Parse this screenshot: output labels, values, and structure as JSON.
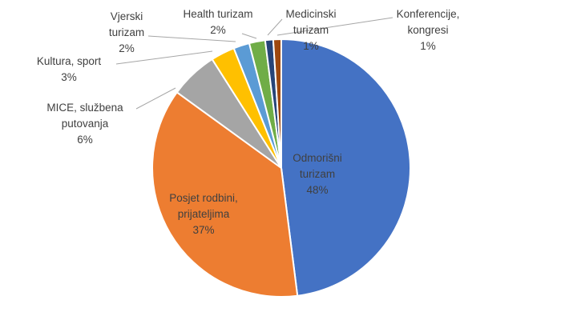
{
  "chart_data": {
    "type": "pie",
    "title": "",
    "colors": {
      "Odmorišni turizam": "#4472c4",
      "Posjet rodbini, prijateljima": "#ed7d31",
      "MICE, službena putovanja": "#a5a5a5",
      "Kultura, sport": "#ffc000",
      "Vjerski turizam": "#5b9bd5",
      "Health turizam": "#70ad47",
      "Medicinski turizam": "#264478",
      "Konferencije, kongresi": "#9e480e"
    },
    "slices": [
      {
        "label": "Odmorišni turizam",
        "lines": [
          "Odmorišni",
          "turizam"
        ],
        "value": 48,
        "value_label": "48%"
      },
      {
        "label": "Posjet rodbini, prijateljima",
        "lines": [
          "Posjet rodbini,",
          "prijateljima"
        ],
        "value": 37,
        "value_label": "37%"
      },
      {
        "label": "MICE, službena putovanja",
        "lines": [
          "MICE, službena",
          "putovanja"
        ],
        "value": 6,
        "value_label": "6%"
      },
      {
        "label": "Kultura, sport",
        "lines": [
          "Kultura, sport"
        ],
        "value": 3,
        "value_label": "3%"
      },
      {
        "label": "Vjerski turizam",
        "lines": [
          "Vjerski",
          "turizam"
        ],
        "value": 2,
        "value_label": "2%"
      },
      {
        "label": "Health turizam",
        "lines": [
          "Health turizam"
        ],
        "value": 2,
        "value_label": "2%"
      },
      {
        "label": "Medicinski turizam",
        "lines": [
          "Medicinski",
          "turizam"
        ],
        "value": 1,
        "value_label": "1%"
      },
      {
        "label": "Konferencije, kongresi",
        "lines": [
          "Konferencije,",
          "kongresi"
        ],
        "value": 1,
        "value_label": "1%"
      }
    ]
  }
}
